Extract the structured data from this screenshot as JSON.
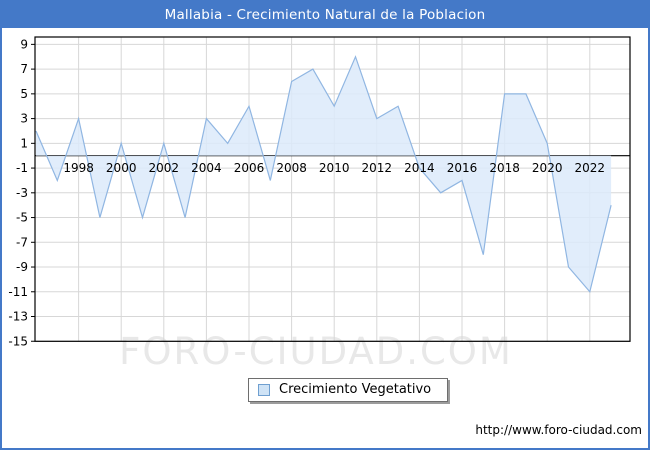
{
  "window": {
    "title": "Mallabia - Crecimiento Natural de la Poblacion"
  },
  "chart_data": {
    "type": "area",
    "title": "Mallabia - Crecimiento Natural de la Poblacion",
    "xlabel": "",
    "ylabel": "",
    "x": [
      1996,
      1997,
      1998,
      1999,
      2000,
      2001,
      2002,
      2003,
      2004,
      2005,
      2006,
      2007,
      2008,
      2009,
      2010,
      2011,
      2012,
      2013,
      2014,
      2015,
      2016,
      2017,
      2018,
      2019,
      2020,
      2021,
      2022,
      2023
    ],
    "series": [
      {
        "name": "Crecimiento Vegetativo",
        "values": [
          2,
          -2,
          3,
          -5,
          1,
          -5,
          1,
          -5,
          3,
          1,
          4,
          -2,
          6,
          7,
          4,
          8,
          3,
          4,
          -1,
          -3,
          -2,
          -8,
          5,
          5,
          1,
          -9,
          -11,
          -4
        ]
      }
    ],
    "xtick_labels": [
      "1998",
      "2000",
      "2002",
      "2004",
      "2006",
      "2008",
      "2010",
      "2012",
      "2014",
      "2016",
      "2018",
      "2020",
      "2022"
    ],
    "xgrid_years": [
      1998,
      2000,
      2002,
      2004,
      2006,
      2008,
      2010,
      2012,
      2014,
      2016,
      2018,
      2020,
      2022
    ],
    "ytick_values": [
      9,
      7,
      5,
      3,
      1,
      -1,
      -3,
      -5,
      -7,
      -9,
      -11,
      -13,
      -15
    ],
    "ylim": [
      -15,
      9.6
    ],
    "xlim": [
      1996,
      2023.9
    ],
    "grid": true,
    "baseline": 0,
    "legend_position": "bottom-center"
  },
  "theme": {
    "title_bar": "#4479c8",
    "frame_border": "#4479c8",
    "line": "#90b6e2",
    "fill": "#dceafa",
    "grid": "#d7d7d7",
    "axis": "#000000",
    "watermark_color": "#e8e8e8",
    "legend_swatch_fill": "#cfe3f6",
    "legend_swatch_border": "#6f9fd0"
  },
  "legend": {
    "label": "Crecimiento Vegetativo"
  },
  "watermark": {
    "text": "FORO-CIUDAD.COM"
  },
  "footer": {
    "url": "http://www.foro-ciudad.com"
  }
}
